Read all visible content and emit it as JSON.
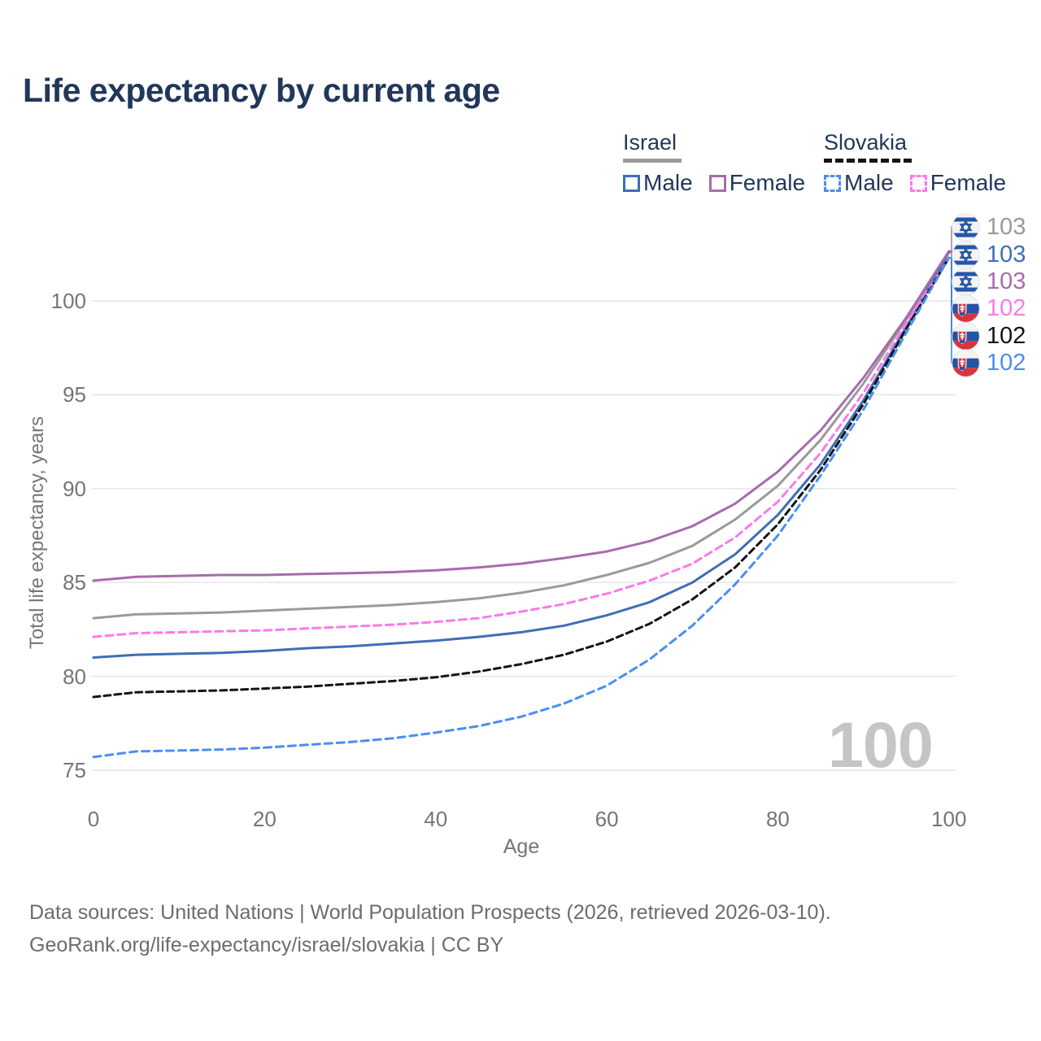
{
  "title": "Life expectancy by current age",
  "watermark": "100",
  "legend": {
    "groups": [
      {
        "name": "Israel",
        "line_style": "solid",
        "underline_color": "#9a9a9a",
        "items": [
          {
            "label": "Male",
            "color": "#3f6eb5"
          },
          {
            "label": "Female",
            "color": "#a76bac"
          }
        ]
      },
      {
        "name": "Slovakia",
        "line_style": "dashed",
        "underline_color": "#141414",
        "items": [
          {
            "label": "Male",
            "color": "#4b8ef2"
          },
          {
            "label": "Female",
            "color": "#fa7ae9"
          }
        ]
      }
    ]
  },
  "chart_data": {
    "type": "line",
    "title": "Life expectancy by current age",
    "xlabel": "Age",
    "ylabel": "Total life expectancy, years",
    "xlim": [
      0,
      100
    ],
    "ylim": [
      74.5,
      103
    ],
    "x_ticks": [
      0,
      20,
      40,
      60,
      80,
      100
    ],
    "y_ticks": [
      75,
      80,
      85,
      90,
      95,
      100
    ],
    "grid": true,
    "legend_position": "top-right",
    "x": [
      0,
      5,
      10,
      15,
      20,
      25,
      30,
      35,
      40,
      45,
      50,
      55,
      60,
      65,
      70,
      75,
      80,
      85,
      90,
      95,
      100
    ],
    "series": [
      {
        "name": "Israel total",
        "country": "Israel",
        "sex": "total",
        "color": "#9a9a9a",
        "dash": false,
        "values": [
          83.1,
          83.3,
          83.35,
          83.4,
          83.5,
          83.6,
          83.7,
          83.8,
          83.95,
          84.15,
          84.45,
          84.85,
          85.4,
          86.05,
          86.95,
          88.35,
          90.15,
          92.6,
          95.6,
          99.0,
          102.6
        ]
      },
      {
        "name": "Israel male",
        "country": "Israel",
        "sex": "male",
        "color": "#3f6eb5",
        "dash": false,
        "values": [
          81.0,
          81.15,
          81.2,
          81.25,
          81.35,
          81.5,
          81.6,
          81.75,
          81.9,
          82.1,
          82.35,
          82.7,
          83.25,
          83.95,
          85.0,
          86.5,
          88.6,
          91.3,
          94.7,
          98.6,
          102.6
        ]
      },
      {
        "name": "Israel female",
        "country": "Israel",
        "sex": "female",
        "color": "#a76bac",
        "dash": false,
        "values": [
          85.1,
          85.3,
          85.35,
          85.4,
          85.4,
          85.45,
          85.5,
          85.55,
          85.65,
          85.8,
          86.0,
          86.3,
          86.65,
          87.2,
          88.0,
          89.2,
          90.9,
          93.1,
          95.9,
          99.1,
          102.65
        ]
      },
      {
        "name": "Slovakia female",
        "country": "Slovakia",
        "sex": "female",
        "color": "#fa7ae9",
        "dash": true,
        "values": [
          82.1,
          82.3,
          82.35,
          82.4,
          82.45,
          82.55,
          82.65,
          82.75,
          82.9,
          83.1,
          83.45,
          83.85,
          84.4,
          85.1,
          86.0,
          87.4,
          89.3,
          91.9,
          95.1,
          98.8,
          102.3
        ]
      },
      {
        "name": "Slovakia total",
        "country": "Slovakia",
        "sex": "total",
        "color": "#141414",
        "dash": true,
        "values": [
          78.9,
          79.15,
          79.2,
          79.25,
          79.35,
          79.45,
          79.6,
          79.75,
          79.95,
          80.25,
          80.65,
          81.15,
          81.85,
          82.8,
          84.1,
          85.8,
          88.1,
          91.0,
          94.5,
          98.5,
          102.3
        ]
      },
      {
        "name": "Slovakia male",
        "country": "Slovakia",
        "sex": "male",
        "color": "#4b8ef2",
        "dash": true,
        "values": [
          75.7,
          76.0,
          76.05,
          76.1,
          76.2,
          76.35,
          76.5,
          76.7,
          77.0,
          77.35,
          77.85,
          78.55,
          79.5,
          80.9,
          82.7,
          84.9,
          87.5,
          90.7,
          94.2,
          98.3,
          102.3
        ]
      }
    ],
    "end_labels": [
      {
        "flag": "israel",
        "value": "103",
        "color": "#9a9a9a",
        "series": "Israel total",
        "end_value": 102.6
      },
      {
        "flag": "israel",
        "value": "103",
        "color": "#3f6eb5",
        "series": "Israel male",
        "end_value": 102.6
      },
      {
        "flag": "israel",
        "value": "103",
        "color": "#a76bac",
        "series": "Israel female",
        "end_value": 102.65
      },
      {
        "flag": "slovakia",
        "value": "102",
        "color": "#fa7ae9",
        "series": "Slovakia female",
        "end_value": 102.3
      },
      {
        "flag": "slovakia",
        "value": "102",
        "color": "#141414",
        "series": "Slovakia total",
        "end_value": 102.3
      },
      {
        "flag": "slovakia",
        "value": "102",
        "color": "#4b8ef2",
        "series": "Slovakia male",
        "end_value": 102.3
      }
    ]
  },
  "footer": {
    "line1": "Data sources: United Nations | World Population Prospects (2026, retrieved 2026-03-10).",
    "line2": "GeoRank.org/life-expectancy/israel/slovakia | CC BY"
  }
}
